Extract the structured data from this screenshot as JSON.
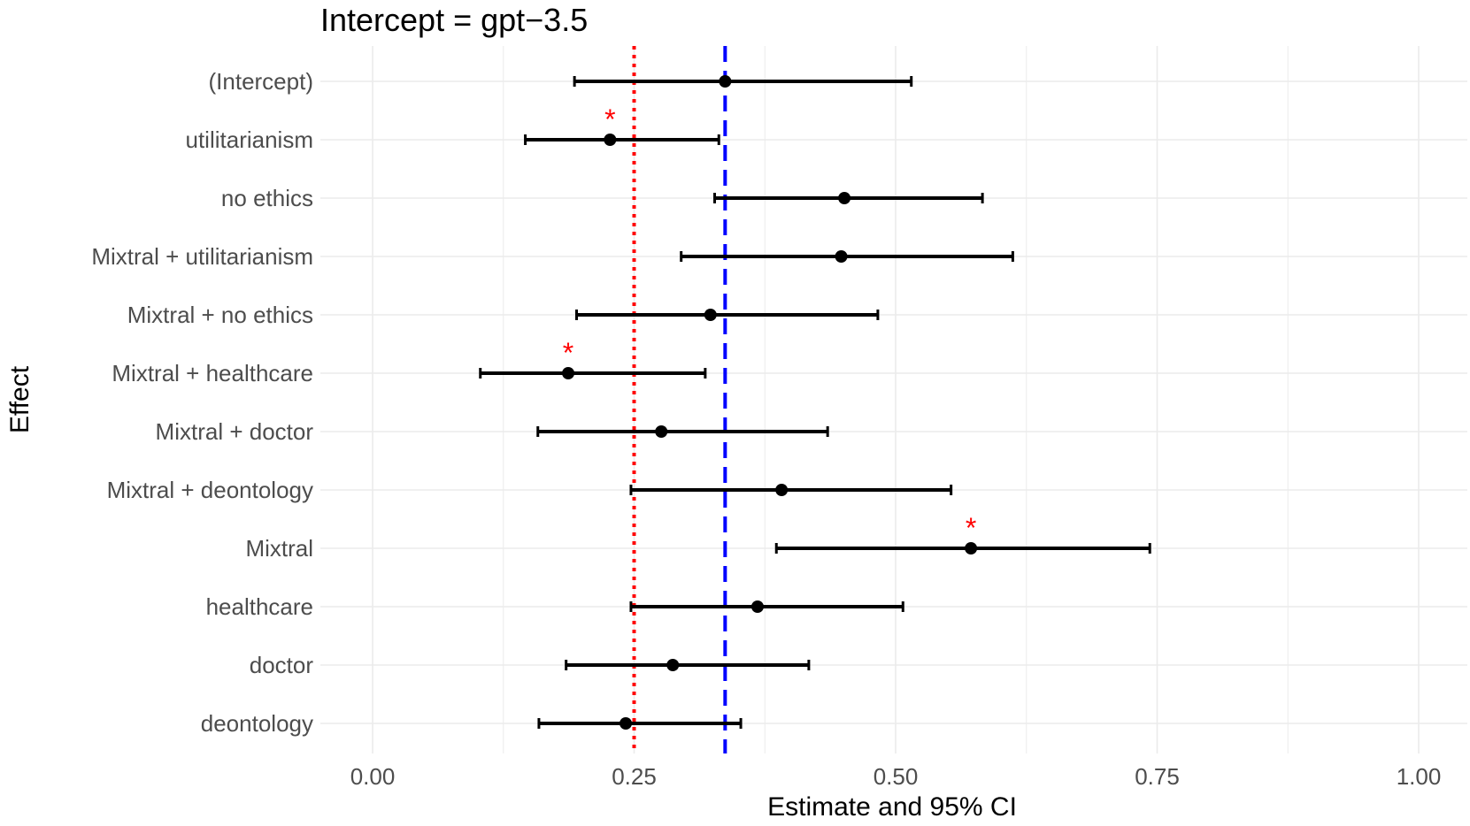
{
  "chart_data": {
    "type": "scatter",
    "subtype": "forest-plot-with-error-bars",
    "title": "Intercept =  gpt−3.5",
    "xlabel": "Estimate and 95% CI",
    "ylabel": "Effect",
    "xlim": [
      -0.02,
      1.04
    ],
    "x_ticks": [
      0.0,
      0.25,
      0.5,
      0.75,
      1.0
    ],
    "x_tick_labels": [
      "0.00",
      "0.25",
      "0.50",
      "0.75",
      "1.00"
    ],
    "grid": true,
    "reference_lines": [
      {
        "x": 0.25,
        "style": "dotted",
        "color": "#ff0000"
      },
      {
        "x": 0.337,
        "style": "dashed",
        "color": "#0000ff"
      }
    ],
    "effects": [
      {
        "label": "(Intercept)",
        "estimate": 0.337,
        "lower": 0.193,
        "upper": 0.515,
        "significant": false
      },
      {
        "label": "utilitarianism",
        "estimate": 0.227,
        "lower": 0.146,
        "upper": 0.331,
        "significant": true
      },
      {
        "label": "no ethics",
        "estimate": 0.451,
        "lower": 0.327,
        "upper": 0.583,
        "significant": false
      },
      {
        "label": "Mixtral +  utilitarianism",
        "estimate": 0.448,
        "lower": 0.295,
        "upper": 0.612,
        "significant": false
      },
      {
        "label": "Mixtral +  no ethics",
        "estimate": 0.323,
        "lower": 0.195,
        "upper": 0.483,
        "significant": false
      },
      {
        "label": "Mixtral +  healthcare",
        "estimate": 0.187,
        "lower": 0.103,
        "upper": 0.318,
        "significant": true
      },
      {
        "label": "Mixtral +  doctor",
        "estimate": 0.276,
        "lower": 0.158,
        "upper": 0.435,
        "significant": false
      },
      {
        "label": "Mixtral +  deontology",
        "estimate": 0.391,
        "lower": 0.247,
        "upper": 0.553,
        "significant": false
      },
      {
        "label": "Mixtral",
        "estimate": 0.572,
        "lower": 0.386,
        "upper": 0.743,
        "significant": true
      },
      {
        "label": "healthcare",
        "estimate": 0.368,
        "lower": 0.247,
        "upper": 0.507,
        "significant": false
      },
      {
        "label": "doctor",
        "estimate": 0.287,
        "lower": 0.185,
        "upper": 0.417,
        "significant": false
      },
      {
        "label": "deontology",
        "estimate": 0.242,
        "lower": 0.159,
        "upper": 0.352,
        "significant": false
      }
    ],
    "significance_marker": "*",
    "colors": {
      "points": "#000000",
      "marker": "#ff0000",
      "grid": "#ebebeb"
    }
  }
}
